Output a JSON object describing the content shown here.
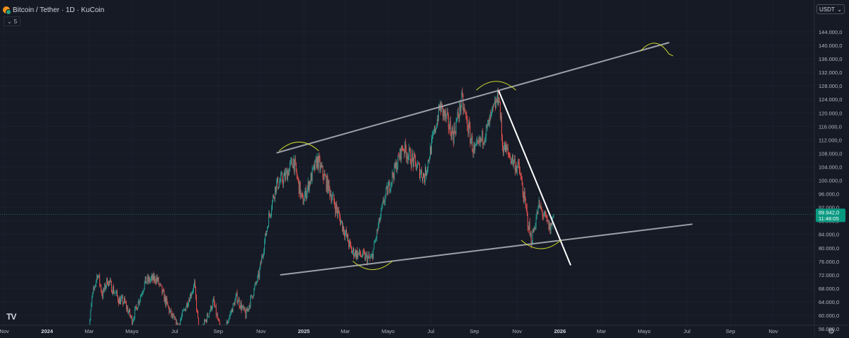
{
  "header": {
    "symbol_title": "Bitcoin / Tether · 1D · KuCoin",
    "interval_toggle": "5",
    "currency": "USDT"
  },
  "logo_text": "TV",
  "colors": {
    "background": "#161a25",
    "up": "#26a69a",
    "down": "#ef5350",
    "trendline": "#9ca0a8",
    "breakdown_line": "#ffffff",
    "annotation": "#c8d62c",
    "price_tag": "#089981"
  },
  "icons": [
    "bitcoin-coin-icon",
    "chevron-down-icon",
    "tradingview-logo-icon",
    "settings-gear-icon"
  ],
  "chart_data": {
    "type": "candlestick",
    "title": "Bitcoin / Tether · 1D · KuCoin",
    "yaxis_label": "USDT",
    "ylim": [
      53500,
      148500
    ],
    "y_ticks": [
      "144.000,0",
      "140.000,0",
      "136.000,0",
      "132.000,0",
      "128.000,0",
      "124.000,0",
      "120.000,0",
      "116.000,0",
      "112.000,0",
      "108.000,0",
      "104.000,0",
      "100.000,0",
      "96.000,0",
      "92.000,0",
      "88.000,0",
      "84.000,0",
      "80.000,0",
      "76.000,0",
      "72.000,0",
      "68.000,0",
      "64.000,0",
      "60.000,0",
      "56.000,0"
    ],
    "y_tick_values": [
      144000,
      140000,
      136000,
      132000,
      128000,
      124000,
      120000,
      116000,
      112000,
      108000,
      104000,
      100000,
      96000,
      92000,
      88000,
      84000,
      80000,
      76000,
      72000,
      68000,
      64000,
      60000,
      56000
    ],
    "x_ticks": [
      {
        "label": "Nov",
        "date": "2023-11-01"
      },
      {
        "label": "2024",
        "date": "2024-01-01"
      },
      {
        "label": "Mar",
        "date": "2024-03-01"
      },
      {
        "label": "Mayo",
        "date": "2024-05-01"
      },
      {
        "label": "Jul",
        "date": "2024-07-01"
      },
      {
        "label": "Sep",
        "date": "2024-09-01"
      },
      {
        "label": "Nov",
        "date": "2024-11-01"
      },
      {
        "label": "2025",
        "date": "2025-01-01"
      },
      {
        "label": "Mar",
        "date": "2025-03-01"
      },
      {
        "label": "Mayo",
        "date": "2025-05-01"
      },
      {
        "label": "Jul",
        "date": "2025-07-01"
      },
      {
        "label": "Sep",
        "date": "2025-09-01"
      },
      {
        "label": "Nov",
        "date": "2025-11-01"
      },
      {
        "label": "2026",
        "date": "2026-01-01"
      },
      {
        "label": "Mar",
        "date": "2026-03-01"
      },
      {
        "label": "Mayo",
        "date": "2026-05-01"
      },
      {
        "label": "Jul",
        "date": "2026-07-01"
      },
      {
        "label": "Sep",
        "date": "2026-09-01"
      },
      {
        "label": "Nov",
        "date": "2026-11-01"
      }
    ],
    "bold_x_labels": [
      "2024",
      "2025",
      "2026"
    ],
    "price_path": [
      {
        "date": "2024-02-28",
        "close": 52000
      },
      {
        "date": "2024-03-05",
        "close": 65000
      },
      {
        "date": "2024-03-13",
        "close": 72500
      },
      {
        "date": "2024-03-20",
        "close": 66000
      },
      {
        "date": "2024-03-27",
        "close": 70500
      },
      {
        "date": "2024-04-13",
        "close": 64500
      },
      {
        "date": "2024-04-20",
        "close": 64000
      },
      {
        "date": "2024-05-01",
        "close": 58500
      },
      {
        "date": "2024-05-20",
        "close": 70000
      },
      {
        "date": "2024-06-05",
        "close": 71000
      },
      {
        "date": "2024-06-25",
        "close": 60500
      },
      {
        "date": "2024-07-05",
        "close": 56500
      },
      {
        "date": "2024-07-29",
        "close": 69000
      },
      {
        "date": "2024-08-05",
        "close": 54000
      },
      {
        "date": "2024-08-25",
        "close": 64000
      },
      {
        "date": "2024-09-06",
        "close": 53500
      },
      {
        "date": "2024-09-27",
        "close": 65500
      },
      {
        "date": "2024-10-10",
        "close": 60000
      },
      {
        "date": "2024-10-29",
        "close": 72000
      },
      {
        "date": "2024-11-12",
        "close": 89000
      },
      {
        "date": "2024-11-22",
        "close": 98500
      },
      {
        "date": "2024-12-05",
        "close": 101000
      },
      {
        "date": "2024-12-17",
        "close": 106000
      },
      {
        "date": "2024-12-30",
        "close": 93500
      },
      {
        "date": "2025-01-20",
        "close": 106000
      },
      {
        "date": "2025-02-05",
        "close": 98000
      },
      {
        "date": "2025-02-28",
        "close": 85000
      },
      {
        "date": "2025-03-10",
        "close": 79000
      },
      {
        "date": "2025-04-07",
        "close": 76500
      },
      {
        "date": "2025-04-25",
        "close": 94000
      },
      {
        "date": "2025-05-22",
        "close": 110000
      },
      {
        "date": "2025-06-22",
        "close": 101000
      },
      {
        "date": "2025-07-14",
        "close": 122000
      },
      {
        "date": "2025-08-02",
        "close": 113500
      },
      {
        "date": "2025-08-14",
        "close": 123500
      },
      {
        "date": "2025-09-01",
        "close": 108000
      },
      {
        "date": "2025-09-20",
        "close": 115500
      },
      {
        "date": "2025-10-06",
        "close": 125500
      },
      {
        "date": "2025-10-11",
        "close": 110500
      },
      {
        "date": "2025-11-04",
        "close": 103000
      },
      {
        "date": "2025-11-21",
        "close": 82000
      },
      {
        "date": "2025-12-02",
        "close": 92500
      },
      {
        "date": "2025-12-18",
        "close": 85500
      },
      {
        "date": "2025-12-23",
        "close": 89942
      }
    ],
    "last_price_label": "89.942,0",
    "countdown_label": "11:48:05",
    "last_price": 89942,
    "annotations": {
      "upper_channel": {
        "from": {
          "date": "2024-11-24",
          "price": 108200
        },
        "to": {
          "date": "2026-06-05",
          "price": 140800
        }
      },
      "lower_channel": {
        "from": {
          "date": "2024-11-29",
          "price": 72000
        },
        "to": {
          "date": "2026-07-08",
          "price": 87000
        }
      },
      "breakdown_line": {
        "from": {
          "date": "2025-10-06",
          "price": 126400
        },
        "to": {
          "date": "2026-01-16",
          "price": 75000
        }
      },
      "arcs": [
        {
          "date": "2024-12-25",
          "price": 110200
        },
        {
          "date": "2025-04-09",
          "price": 74800
        },
        {
          "date": "2025-10-02",
          "price": 128200
        },
        {
          "date": "2025-12-05",
          "price": 81000
        },
        {
          "date": "2026-05-18",
          "price": 139600
        }
      ]
    }
  }
}
